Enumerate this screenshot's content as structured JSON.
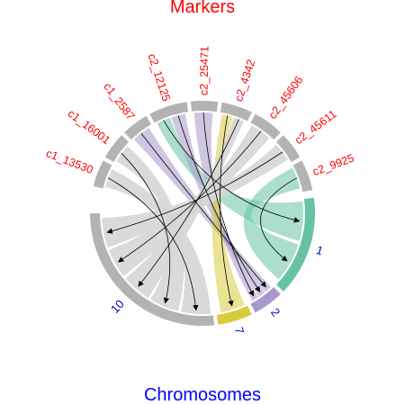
{
  "chart_data": {
    "type": "chord",
    "title": "Markers",
    "bottom_label": "Chromosomes",
    "markers": [
      "c1_13530",
      "c1_16001",
      "c1_2587",
      "c2_12125",
      "c2_25471",
      "c2_4342",
      "c2_45606",
      "c2_45611",
      "c2_9925"
    ],
    "chromosomes": [
      "1",
      "2",
      "7",
      "10"
    ],
    "links": [
      {
        "from": "c1_13530",
        "to": "10"
      },
      {
        "from": "c1_16001",
        "to": "10"
      },
      {
        "from": "c1_2587",
        "to": "2"
      },
      {
        "from": "c2_12125",
        "to": "1"
      },
      {
        "from": "c2_12125",
        "to": "2"
      },
      {
        "from": "c2_25471",
        "to": "2"
      },
      {
        "from": "c2_4342",
        "to": "7"
      },
      {
        "from": "c2_4342",
        "to": "10"
      },
      {
        "from": "c2_45606",
        "to": "10"
      },
      {
        "from": "c2_45611",
        "to": "10"
      },
      {
        "from": "c2_9925",
        "to": "1"
      }
    ]
  },
  "colors": {
    "title": "#ff0000",
    "marker_label": "#ff0000",
    "chromosome_label": "#0000cc",
    "bottom_label": "#0000ff",
    "sector_grey": "#b3b3b3",
    "link_grey": "#d6d6d6",
    "link_line": "#000000",
    "chrom_1": "#66c2a5",
    "chrom_2": "#a799c9",
    "chrom_7": "#d9cb3e",
    "chrom_10": "#b3b3b3"
  }
}
